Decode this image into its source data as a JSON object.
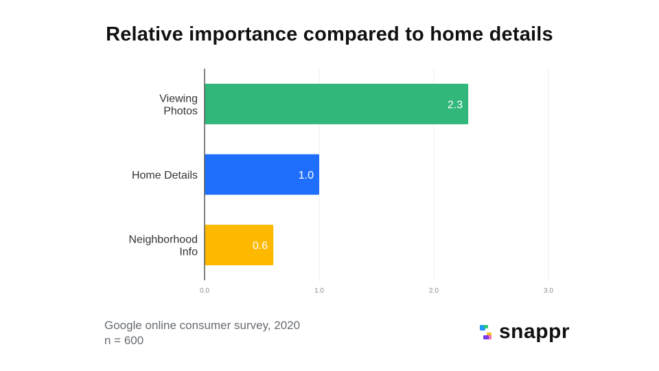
{
  "chart_data": {
    "type": "bar",
    "orientation": "horizontal",
    "title": "Relative importance compared to home details",
    "categories": [
      [
        "Viewing",
        "Photos"
      ],
      [
        "Home Details"
      ],
      [
        "Neighborhood",
        "Info"
      ]
    ],
    "values": [
      2.3,
      1.0,
      0.6
    ],
    "data_labels": [
      "2.3",
      "1.0",
      "0.6"
    ],
    "colors": [
      "#32b77b",
      "#206ffc",
      "#fdb900"
    ],
    "xlim": [
      0,
      3
    ],
    "xticks": [
      0,
      1,
      2,
      3
    ],
    "xtick_labels": [
      "0.0",
      "1.0",
      "2.0",
      "3.0"
    ],
    "xlabel": "",
    "ylabel": "",
    "grid": true,
    "legend": "none"
  },
  "footer": {
    "source_line1": "Google online consumer survey, 2020",
    "source_line2": "n = 600"
  },
  "logo": {
    "text": "snappr",
    "colors": [
      "#2196f3",
      "#2ecc71",
      "#7c3aed",
      "#f472b6",
      "#fbbf24"
    ]
  }
}
